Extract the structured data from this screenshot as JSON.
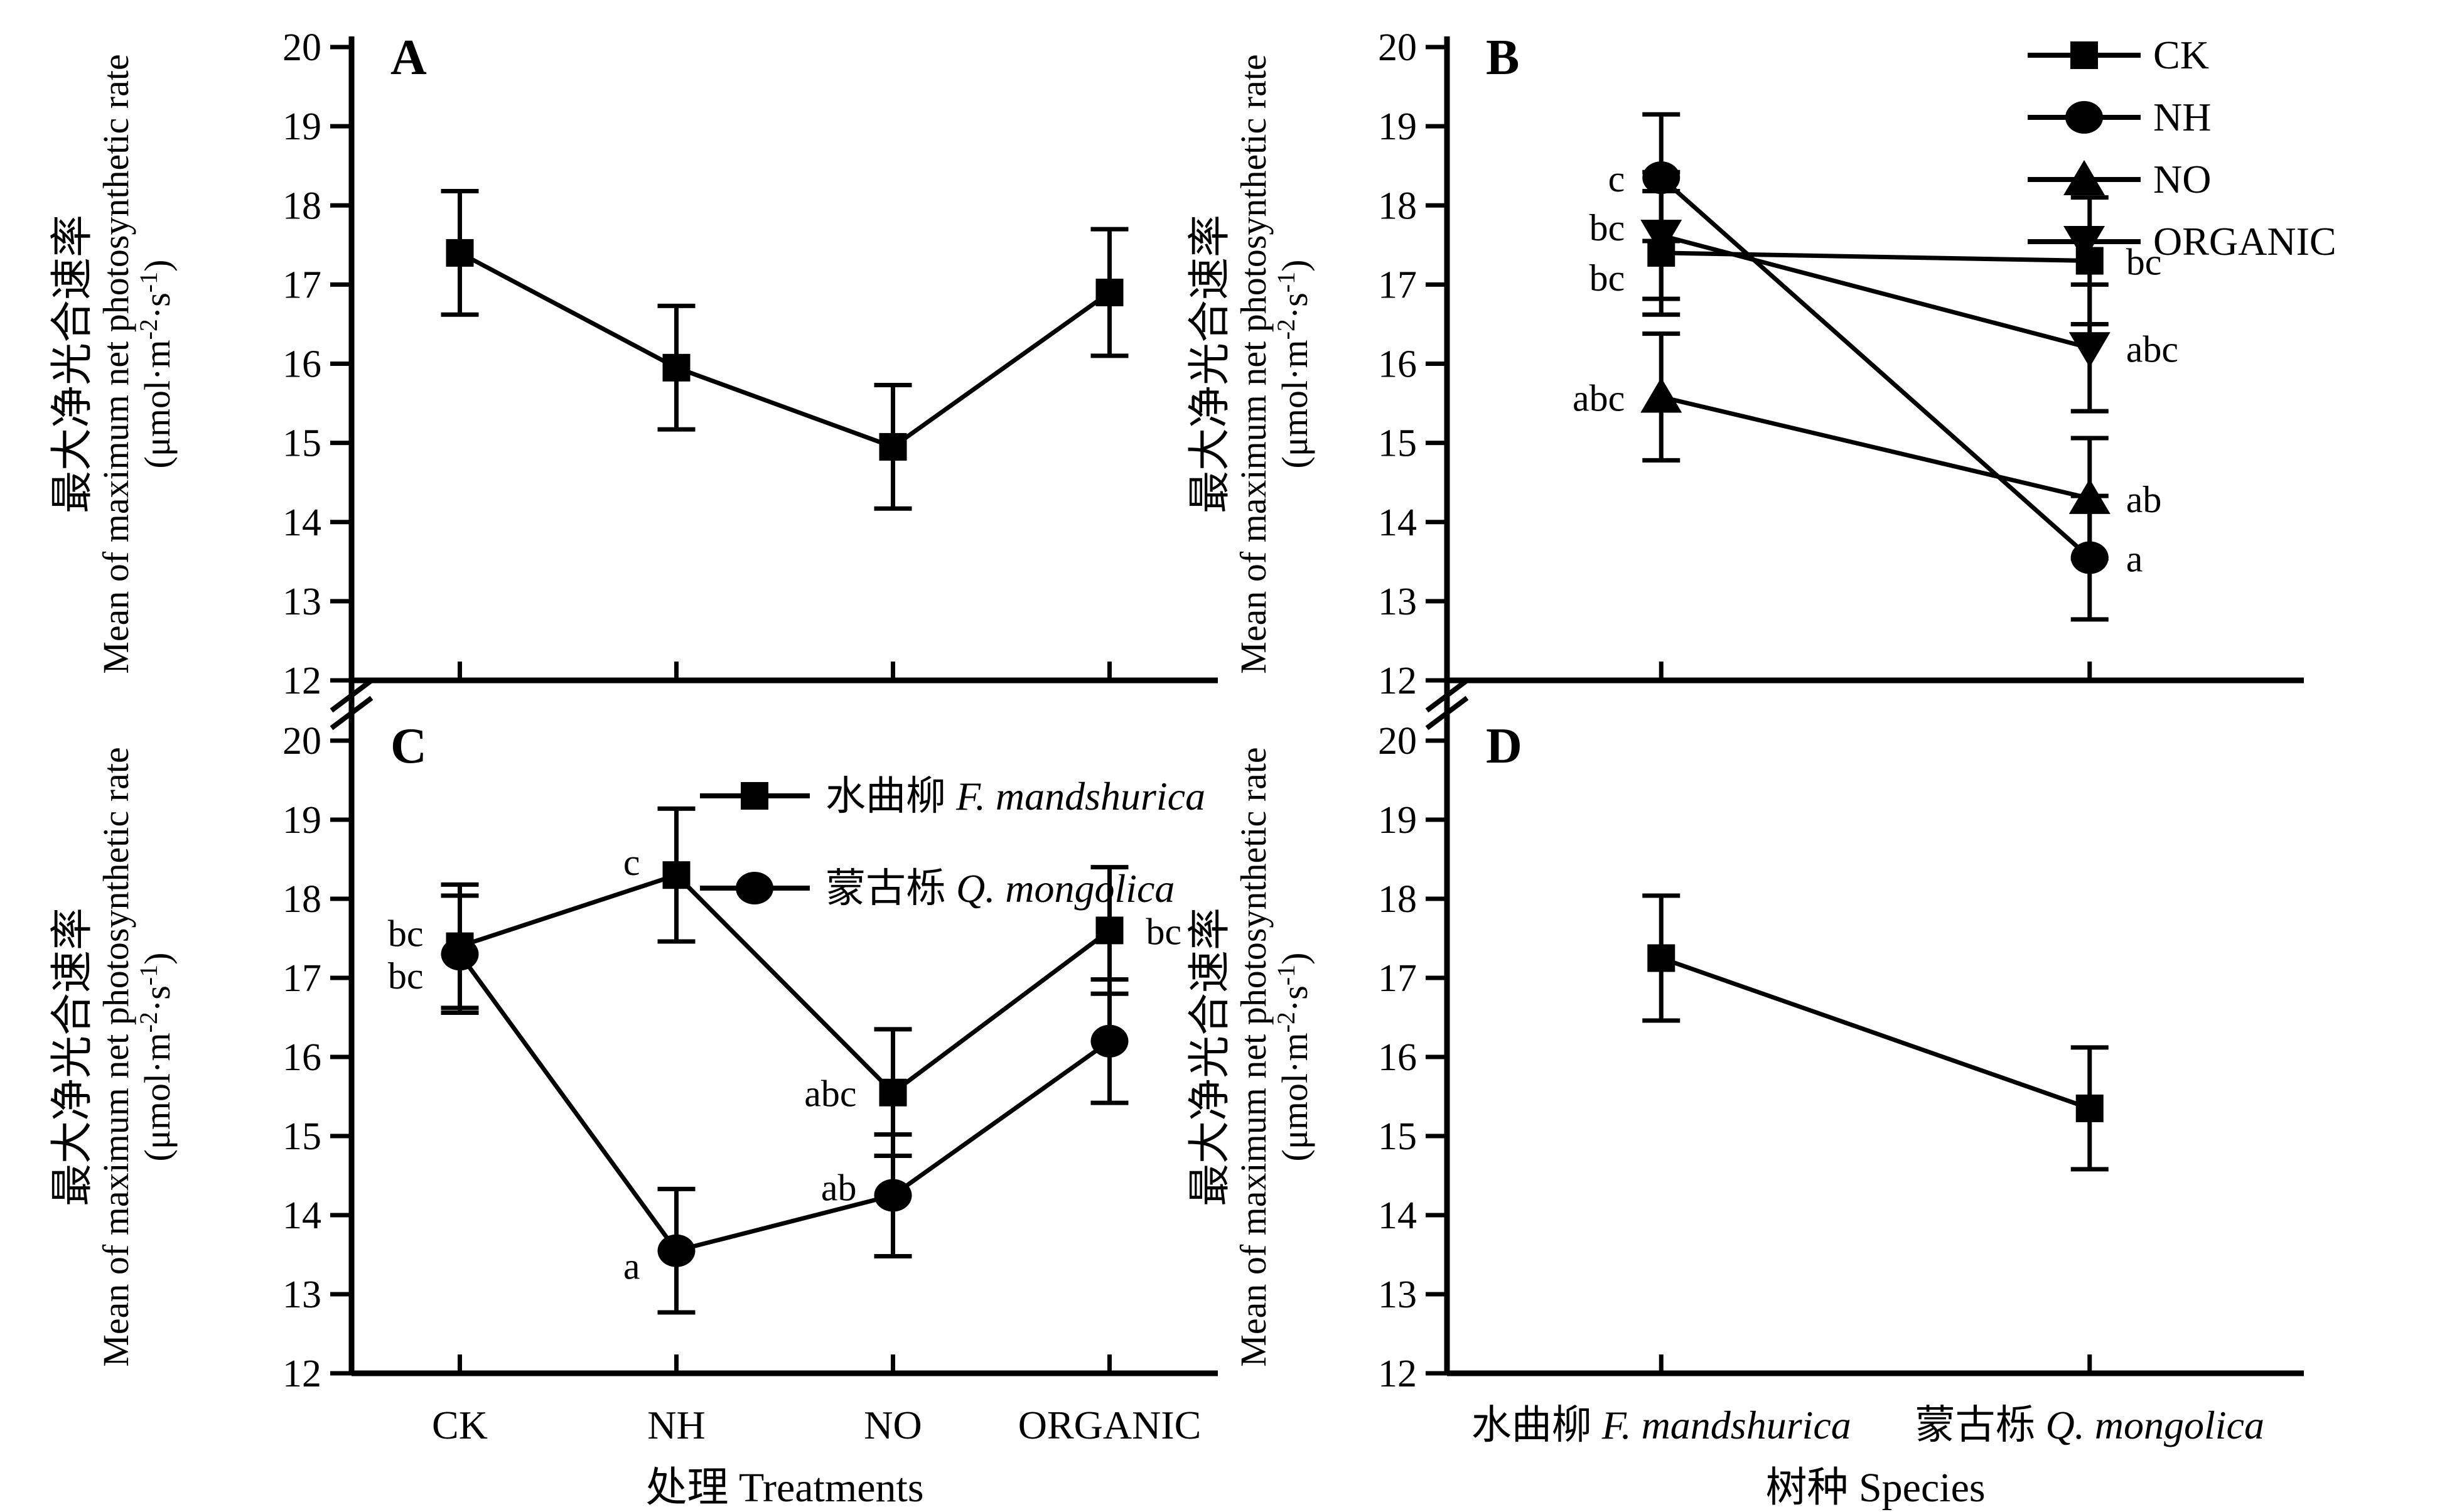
{
  "figure": {
    "background": "#ffffff",
    "ink": "#000000",
    "y_axis": {
      "title_zh": "最大净光合速率",
      "title_en": "Mean of maximum net photosynthetic rate",
      "units_text": "(μmol·m⁻²·s⁻¹)",
      "units_parts": {
        "pre": "(μmol·m",
        "sup1": "-2",
        "mid": "·s",
        "sup2": "-1",
        "suf": ")"
      },
      "min": 12,
      "max": 20,
      "ticks": [
        12,
        13,
        14,
        15,
        16,
        17,
        18,
        19,
        20
      ]
    },
    "x_axes": {
      "treatments": {
        "title_zh": "处理",
        "title_en": "Treatments",
        "categories": [
          "CK",
          "NH",
          "NO",
          "ORGANIC"
        ]
      },
      "species": {
        "title_zh": "树种",
        "title_en": "Species",
        "categories": [
          {
            "zh": "水曲柳",
            "latin": "F. mandshurica"
          },
          {
            "zh": "蒙古栎",
            "latin": "Q. mongolica"
          }
        ]
      }
    },
    "axis_break_symbol": "//"
  },
  "chart_data": [
    {
      "panel": "A",
      "type": "line",
      "x_axis": "treatments",
      "x_tick_labels_shown": false,
      "ylim": [
        12,
        20
      ],
      "series": [
        {
          "marker": "square",
          "x": [
            "CK",
            "NH",
            "NO",
            "ORGANIC"
          ],
          "y": [
            17.4,
            15.95,
            14.95,
            16.9
          ],
          "err": [
            0.78,
            0.78,
            0.78,
            0.8
          ],
          "point_labels": [
            null,
            null,
            null,
            null
          ]
        }
      ]
    },
    {
      "panel": "B",
      "type": "line",
      "x_axis": "species",
      "x_tick_labels_shown": false,
      "ylim": [
        12,
        20
      ],
      "legend": {
        "position": "top-right",
        "items": [
          {
            "label": "CK",
            "marker": "square"
          },
          {
            "label": "NH",
            "marker": "circle"
          },
          {
            "label": "NO",
            "marker": "triangle-up"
          },
          {
            "label": "ORGANIC",
            "marker": "triangle-down"
          }
        ]
      },
      "series": [
        {
          "name": "CK",
          "marker": "square",
          "x": [
            "F. mandshurica",
            "Q. mongolica"
          ],
          "y": [
            17.4,
            17.3
          ],
          "err": [
            0.78,
            0.8
          ],
          "point_labels": [
            {
              "t": "bc",
              "side": "left",
              "dy": 60
            },
            {
              "t": "bc",
              "side": "right",
              "dy": 22
            }
          ]
        },
        {
          "name": "NH",
          "marker": "circle",
          "x": [
            "F. mandshurica",
            "Q. mongolica"
          ],
          "y": [
            18.35,
            13.55
          ],
          "err": [
            0.8,
            0.78
          ],
          "point_labels": [
            {
              "t": "c",
              "side": "left",
              "dy": 22
            },
            {
              "t": "a",
              "side": "right",
              "dy": 22
            }
          ]
        },
        {
          "name": "NO",
          "marker": "triangle-up",
          "x": [
            "F. mandshurica",
            "Q. mongolica"
          ],
          "y": [
            15.58,
            14.3
          ],
          "err": [
            0.8,
            0.76
          ],
          "point_labels": [
            {
              "t": "abc",
              "side": "left",
              "dy": 22
            },
            {
              "t": "ab",
              "side": "right",
              "dy": 22
            }
          ]
        },
        {
          "name": "ORGANIC",
          "marker": "triangle-down",
          "x": [
            "F. mandshurica",
            "Q. mongolica"
          ],
          "y": [
            17.62,
            16.2
          ],
          "err": [
            0.8,
            0.8
          ],
          "point_labels": [
            {
              "t": "bc",
              "side": "left",
              "dy": 8
            },
            {
              "t": "abc",
              "side": "right",
              "dy": 22
            }
          ]
        }
      ]
    },
    {
      "panel": "C",
      "type": "line",
      "x_axis": "treatments",
      "x_tick_labels_shown": true,
      "ylim": [
        12,
        20
      ],
      "legend": {
        "position": "top-center",
        "items": [
          {
            "zh": "水曲柳",
            "latin": "F. mandshurica",
            "marker": "square"
          },
          {
            "zh": "蒙古栎",
            "latin": "Q. mongolica",
            "marker": "circle"
          }
        ]
      },
      "series": [
        {
          "name": "水曲柳 F. mandshurica",
          "marker": "square",
          "x": [
            "CK",
            "NH",
            "NO",
            "ORGANIC"
          ],
          "y": [
            17.4,
            18.3,
            15.55,
            17.6
          ],
          "err": [
            0.78,
            0.84,
            0.8,
            0.8
          ],
          "point_labels": [
            {
              "t": "bc",
              "side": "left",
              "dy": 0
            },
            {
              "t": "c",
              "side": "left",
              "dy": 0
            },
            {
              "t": "abc",
              "side": "left",
              "dy": 22
            },
            {
              "t": "bc",
              "side": "right",
              "dy": 22
            }
          ]
        },
        {
          "name": "蒙古栎 Q. mongolica",
          "marker": "circle",
          "x": [
            "CK",
            "NH",
            "NO",
            "ORGANIC"
          ],
          "y": [
            17.3,
            13.55,
            14.25,
            16.2
          ],
          "err": [
            0.74,
            0.78,
            0.77,
            0.78
          ],
          "point_labels": [
            {
              "t": "bc",
              "side": "left",
              "dy": 55
            },
            {
              "t": "a",
              "side": "left",
              "dy": 45
            },
            {
              "t": "ab",
              "side": "left",
              "dy": 8
            },
            null
          ]
        }
      ]
    },
    {
      "panel": "D",
      "type": "line",
      "x_axis": "species",
      "x_tick_labels_shown": true,
      "ylim": [
        12,
        20
      ],
      "series": [
        {
          "marker": "square",
          "x": [
            "F. mandshurica",
            "Q. mongolica"
          ],
          "y": [
            17.25,
            15.35
          ],
          "err": [
            0.79,
            0.77
          ],
          "point_labels": [
            null,
            null
          ]
        }
      ]
    }
  ]
}
